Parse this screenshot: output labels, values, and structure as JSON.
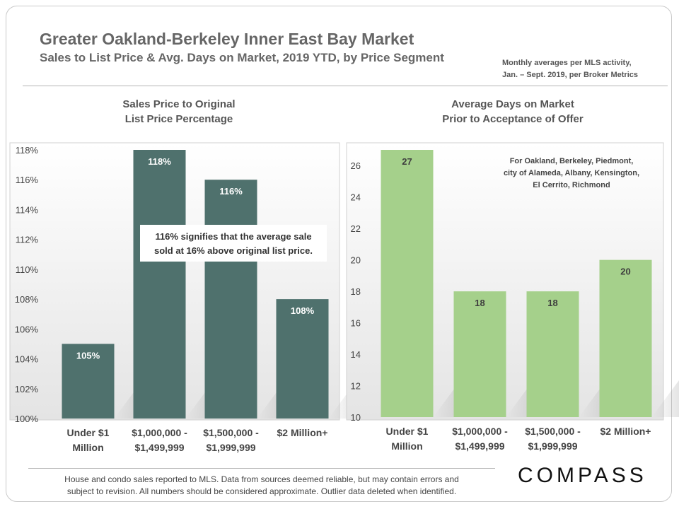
{
  "header": {
    "title": "Greater Oakland-Berkeley Inner East Bay Market",
    "subtitle": "Sales to List Price & Avg. Days on Market, 2019 YTD, by Price Segment",
    "note_line1": "Monthly averages per MLS activity,",
    "note_line2": "Jan. – Sept. 2019, per Broker Metrics"
  },
  "footer": {
    "line1": "House and condo sales reported to MLS. Data from sources deemed reliable, but may contain errors and",
    "line2": "subject to revision. All numbers should be considered approximate. Outlier data deleted when identified.",
    "logo": "COMPASS"
  },
  "colors": {
    "left_bar": "#4f716d",
    "right_bar": "#a5d08b"
  },
  "chart_data": [
    {
      "type": "bar",
      "title_line1": "Sales Price to Original",
      "title_line2": "List Price Percentage",
      "categories": [
        [
          "Under $1",
          "Million"
        ],
        [
          "$1,000,000 -",
          "$1,499,999"
        ],
        [
          "$1,500,000 -",
          "$1,999,999"
        ],
        [
          "$2 Million+"
        ]
      ],
      "values": [
        105,
        118,
        116,
        108
      ],
      "value_labels": [
        "105%",
        "118%",
        "116%",
        "108%"
      ],
      "y_ticks": [
        "100%",
        "102%",
        "104%",
        "106%",
        "108%",
        "110%",
        "112%",
        "114%",
        "116%",
        "118%"
      ],
      "ylim": [
        100,
        118
      ],
      "annotation_line1": "116% signifies that the average sale",
      "annotation_line2": "sold at 16% above original list price."
    },
    {
      "type": "bar",
      "title_line1": "Average Days on Market",
      "title_line2": "Prior to Acceptance of Offer",
      "categories": [
        [
          "Under $1",
          "Million"
        ],
        [
          "$1,000,000 -",
          "$1,499,999"
        ],
        [
          "$1,500,000 -",
          "$1,999,999"
        ],
        [
          "$2 Million+"
        ]
      ],
      "values": [
        27,
        18,
        18,
        20
      ],
      "value_labels": [
        "27",
        "18",
        "18",
        "20"
      ],
      "y_ticks": [
        "10",
        "12",
        "14",
        "16",
        "18",
        "20",
        "22",
        "24",
        "26"
      ],
      "ylim": [
        10,
        27
      ],
      "annotation_line1": "For Oakland, Berkeley, Piedmont,",
      "annotation_line2": "city of Alameda, Albany, Kensington,",
      "annotation_line3": "El Cerrito, Richmond"
    }
  ]
}
